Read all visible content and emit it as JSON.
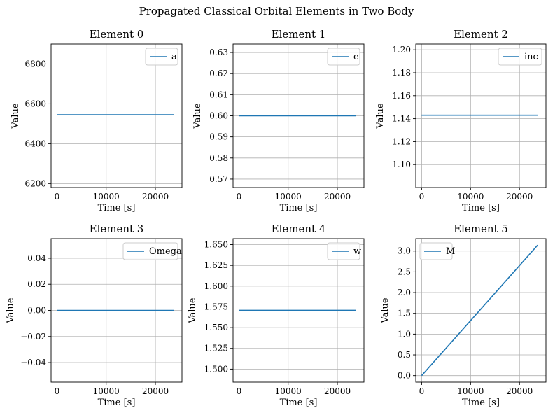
{
  "figure": {
    "title": "Propagated Classical Orbital Elements in Two Body",
    "accent_color": "#1f77b4",
    "grid_color": "#b0b0b0"
  },
  "chart_data": [
    {
      "type": "line",
      "title": "Element 0",
      "xlabel": "Time [s]",
      "ylabel": "Value",
      "xlim": [
        -1200,
        25400
      ],
      "ylim": [
        6180,
        6900
      ],
      "xticks": [
        0,
        10000,
        20000
      ],
      "xtick_labels": [
        "0",
        "10000",
        "20000"
      ],
      "yticks": [
        6200,
        6400,
        6600,
        6800
      ],
      "ytick_labels": [
        "6200",
        "6400",
        "6600",
        "6800"
      ],
      "grid": true,
      "legend": "top-right",
      "series": [
        {
          "name": "a",
          "x": [
            0,
            23700
          ],
          "y": [
            6545,
            6545
          ]
        }
      ]
    },
    {
      "type": "line",
      "title": "Element 1",
      "xlabel": "Time [s]",
      "ylabel": "Value",
      "xlim": [
        -1200,
        25400
      ],
      "ylim": [
        0.566,
        0.634
      ],
      "xticks": [
        0,
        10000,
        20000
      ],
      "xtick_labels": [
        "0",
        "10000",
        "20000"
      ],
      "yticks": [
        0.57,
        0.58,
        0.59,
        0.6,
        0.61,
        0.62,
        0.63
      ],
      "ytick_labels": [
        "0.57",
        "0.58",
        "0.59",
        "0.60",
        "0.61",
        "0.62",
        "0.63"
      ],
      "grid": true,
      "legend": "top-right",
      "series": [
        {
          "name": "e",
          "x": [
            0,
            23700
          ],
          "y": [
            0.6,
            0.6
          ]
        }
      ]
    },
    {
      "type": "line",
      "title": "Element 2",
      "xlabel": "Time [s]",
      "ylabel": "Value",
      "xlim": [
        -1200,
        25400
      ],
      "ylim": [
        1.08,
        1.205
      ],
      "xticks": [
        0,
        10000,
        20000
      ],
      "xtick_labels": [
        "0",
        "10000",
        "20000"
      ],
      "yticks": [
        1.1,
        1.12,
        1.14,
        1.16,
        1.18,
        1.2
      ],
      "ytick_labels": [
        "1.10",
        "1.12",
        "1.14",
        "1.16",
        "1.18",
        "1.20"
      ],
      "grid": true,
      "legend": "top-right",
      "series": [
        {
          "name": "inc",
          "x": [
            0,
            23700
          ],
          "y": [
            1.143,
            1.143
          ]
        }
      ]
    },
    {
      "type": "line",
      "title": "Element 3",
      "xlabel": "Time [s]",
      "ylabel": "Value",
      "xlim": [
        -1200,
        25400
      ],
      "ylim": [
        -0.055,
        0.055
      ],
      "xticks": [
        0,
        10000,
        20000
      ],
      "xtick_labels": [
        "0",
        "10000",
        "20000"
      ],
      "yticks": [
        -0.04,
        -0.02,
        0.0,
        0.02,
        0.04
      ],
      "ytick_labels": [
        "−0.04",
        "−0.02",
        "0.00",
        "0.02",
        "0.04"
      ],
      "grid": true,
      "legend": "top-right",
      "series": [
        {
          "name": "Omega",
          "x": [
            0,
            23700
          ],
          "y": [
            0,
            0
          ]
        }
      ]
    },
    {
      "type": "line",
      "title": "Element 4",
      "xlabel": "Time [s]",
      "ylabel": "Value",
      "xlim": [
        -1200,
        25400
      ],
      "ylim": [
        1.4843,
        1.6572
      ],
      "xticks": [
        0,
        10000,
        20000
      ],
      "xtick_labels": [
        "0",
        "10000",
        "20000"
      ],
      "yticks": [
        1.5,
        1.525,
        1.55,
        1.575,
        1.6,
        1.625,
        1.65
      ],
      "ytick_labels": [
        "1.500",
        "1.525",
        "1.550",
        "1.575",
        "1.600",
        "1.625",
        "1.650"
      ],
      "grid": true,
      "legend": "top-right",
      "series": [
        {
          "name": "w",
          "x": [
            0,
            23700
          ],
          "y": [
            1.5708,
            1.5708
          ]
        }
      ]
    },
    {
      "type": "line",
      "title": "Element 5",
      "xlabel": "Time [s]",
      "ylabel": "Value",
      "xlim": [
        -1200,
        25400
      ],
      "ylim": [
        -0.157,
        3.299
      ],
      "xticks": [
        0,
        10000,
        20000
      ],
      "xtick_labels": [
        "0",
        "10000",
        "20000"
      ],
      "yticks": [
        0.0,
        0.5,
        1.0,
        1.5,
        2.0,
        2.5,
        3.0
      ],
      "ytick_labels": [
        "0.0",
        "0.5",
        "1.0",
        "1.5",
        "2.0",
        "2.5",
        "3.0"
      ],
      "grid": true,
      "legend": "top-left",
      "series": [
        {
          "name": "M",
          "x": [
            0,
            23700
          ],
          "y": [
            0.0,
            3.1416
          ]
        }
      ]
    }
  ]
}
